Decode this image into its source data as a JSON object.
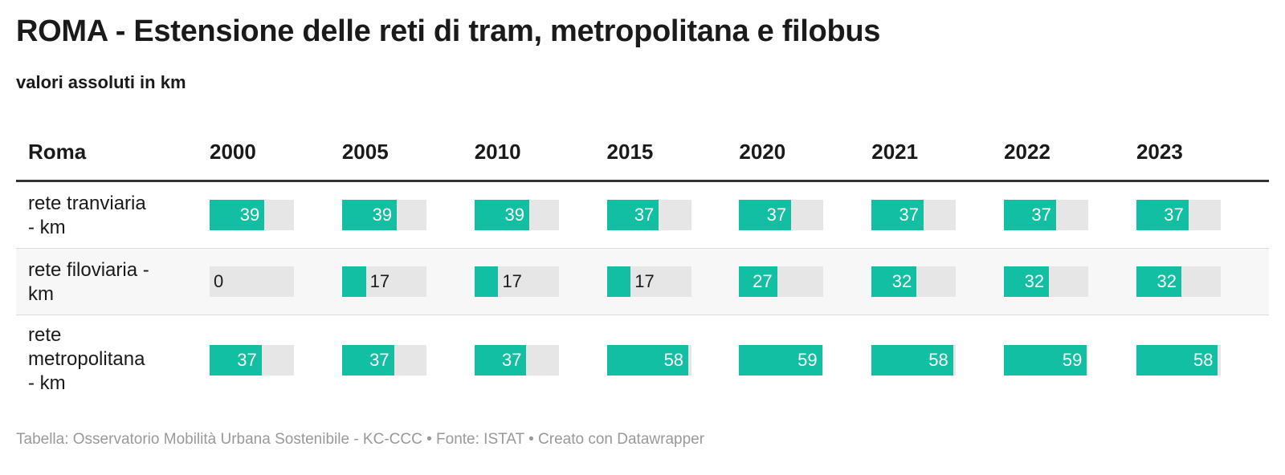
{
  "title": "ROMA - Estensione delle reti di tram, metropolitana e filobus",
  "subtitle": "valori assoluti in km",
  "footer": "Tabella: Osservatorio Mobilità Urbana Sostenibile - KC-CCC • Fonte: ISTAT • Creato con Datawrapper",
  "colors": {
    "bar": "#12bfa2",
    "track": "#e6e6e6",
    "header_rule": "#333333",
    "stripe": "#f7f7f7"
  },
  "chart_data": {
    "type": "table",
    "title": "ROMA - Estensione delle reti di tram, metropolitana e filobus",
    "subtitle": "valori assoluti in km",
    "row_header": "Roma",
    "columns": [
      "2000",
      "2005",
      "2010",
      "2015",
      "2020",
      "2021",
      "2022",
      "2023"
    ],
    "scale_max": 60,
    "rows": [
      {
        "label": "rete tranviaria - km",
        "values": [
          39,
          39,
          39,
          37,
          37,
          37,
          37,
          37
        ]
      },
      {
        "label": "rete filoviaria -km",
        "values": [
          0,
          17,
          17,
          17,
          27,
          32,
          32,
          32
        ]
      },
      {
        "label": "rete metropolitana - km",
        "values": [
          37,
          37,
          37,
          58,
          59,
          58,
          59,
          58
        ]
      }
    ]
  }
}
